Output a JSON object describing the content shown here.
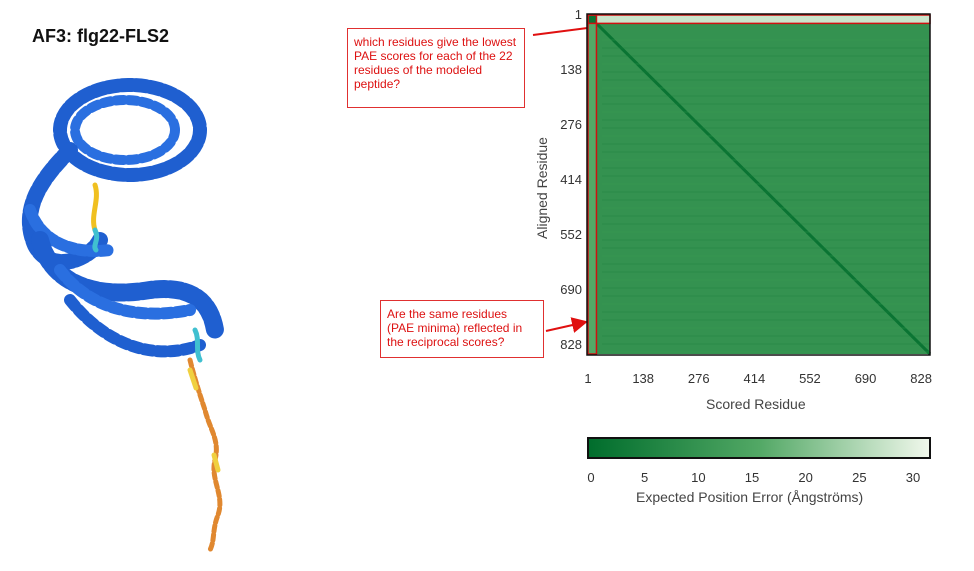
{
  "panel_title": "AF3: flg22-FLS2",
  "annotations": [
    "which residues give the lowest PAE scores for each of the 22 residues of the modeled peptide?",
    "Are the same residues (PAE minima) reflected in the reciprocal scores?"
  ],
  "colors": {
    "high_error": "#f1f8ec",
    "low_error": "#006d2c",
    "annotation": "#e01010",
    "protein_main": "#1f5fd0"
  },
  "icons": [
    "protein-structure-icon"
  ],
  "chart_data": {
    "type": "heatmap",
    "title": "",
    "xlabel": "Scored Residue",
    "ylabel": "Aligned Residue",
    "x_ticks": [
      "1",
      "138",
      "276",
      "414",
      "552",
      "690",
      "828"
    ],
    "y_ticks": [
      "1",
      "138",
      "276",
      "414",
      "552",
      "690",
      "828"
    ],
    "xlim": [
      1,
      850
    ],
    "ylim": [
      1,
      850
    ],
    "colorbar": {
      "label": "Expected Position Error (Ångströms)",
      "ticks": [
        "0",
        "5",
        "10",
        "15",
        "20",
        "25",
        "30"
      ],
      "range": [
        0,
        31.75
      ]
    },
    "highlight_regions": [
      {
        "name": "peptide rows",
        "x": [
          1,
          850
        ],
        "y": [
          1,
          22
        ]
      },
      {
        "name": "peptide columns",
        "x": [
          1,
          22
        ],
        "y": [
          1,
          850
        ]
      }
    ],
    "regions": [
      {
        "x": [
          1,
          22
        ],
        "y": [
          1,
          22
        ],
        "pae": 2
      },
      {
        "x": [
          23,
          850
        ],
        "y": [
          1,
          22
        ],
        "pae": 28
      },
      {
        "x": [
          1,
          22
        ],
        "y": [
          23,
          850
        ],
        "pae": 16
      },
      {
        "x": [
          23,
          850
        ],
        "y": [
          23,
          850
        ],
        "pae": 10
      },
      {
        "x": [
          23,
          850
        ],
        "y": [
          23,
          850
        ],
        "pae": 2,
        "note": "diagonal"
      }
    ]
  }
}
